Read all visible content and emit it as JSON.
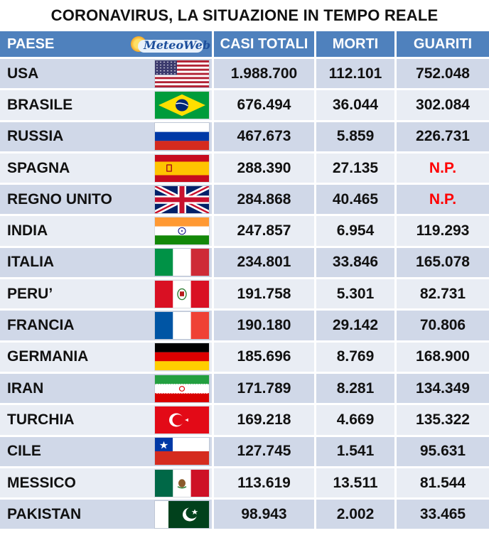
{
  "title": "CORONAVIRUS, LA SITUAZIONE IN TEMPO REALE",
  "logo_text": "MeteoWeb",
  "headers": {
    "country": "PAESE",
    "total": "CASI TOTALI",
    "deaths": "MORTI",
    "recovered": "GUARITI"
  },
  "rows": [
    {
      "country": "USA",
      "flag": "usa-flag-icon",
      "total": "1.988.700",
      "deaths": "112.101",
      "recovered": "752.048"
    },
    {
      "country": "BRASILE",
      "flag": "brazil-flag-icon",
      "total": "676.494",
      "deaths": "36.044",
      "recovered": "302.084"
    },
    {
      "country": "RUSSIA",
      "flag": "russia-flag-icon",
      "total": "467.673",
      "deaths": "5.859",
      "recovered": "226.731"
    },
    {
      "country": "SPAGNA",
      "flag": "spain-flag-icon",
      "total": "288.390",
      "deaths": "27.135",
      "recovered": "N.P."
    },
    {
      "country": "REGNO UNITO",
      "flag": "uk-flag-icon",
      "total": "284.868",
      "deaths": "40.465",
      "recovered": "N.P."
    },
    {
      "country": "INDIA",
      "flag": "india-flag-icon",
      "total": "247.857",
      "deaths": "6.954",
      "recovered": "119.293"
    },
    {
      "country": "ITALIA",
      "flag": "italy-flag-icon",
      "total": "234.801",
      "deaths": "33.846",
      "recovered": "165.078"
    },
    {
      "country": "PERU’",
      "flag": "peru-flag-icon",
      "total": "191.758",
      "deaths": "5.301",
      "recovered": "82.731"
    },
    {
      "country": "FRANCIA",
      "flag": "france-flag-icon",
      "total": "190.180",
      "deaths": "29.142",
      "recovered": "70.806"
    },
    {
      "country": "GERMANIA",
      "flag": "germany-flag-icon",
      "total": "185.696",
      "deaths": "8.769",
      "recovered": "168.900"
    },
    {
      "country": "IRAN",
      "flag": "iran-flag-icon",
      "total": "171.789",
      "deaths": "8.281",
      "recovered": "134.349"
    },
    {
      "country": "TURCHIA",
      "flag": "turkey-flag-icon",
      "total": "169.218",
      "deaths": "4.669",
      "recovered": "135.322"
    },
    {
      "country": "CILE",
      "flag": "chile-flag-icon",
      "total": "127.745",
      "deaths": "1.541",
      "recovered": "95.631"
    },
    {
      "country": "MESSICO",
      "flag": "mexico-flag-icon",
      "total": "113.619",
      "deaths": "13.511",
      "recovered": "81.544"
    },
    {
      "country": "PAKISTAN",
      "flag": "pakistan-flag-icon",
      "total": "98.943",
      "deaths": "2.002",
      "recovered": "33.465"
    }
  ],
  "colors": {
    "header_bg": "#4f81bd",
    "row_odd": "#d0d8e8",
    "row_even": "#e9edf4",
    "not_available": "#ff0000"
  }
}
